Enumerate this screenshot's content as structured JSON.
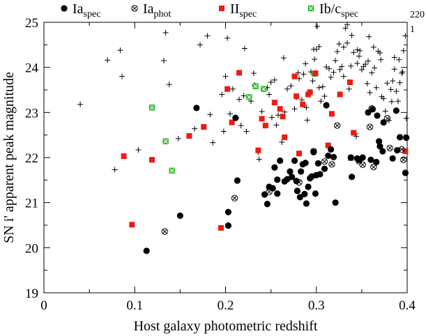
{
  "chart_data": {
    "type": "scatter",
    "xlabel": "Host galaxy photometric redshift",
    "ylabel": "SN i' apparent peak magnitude",
    "xlim": [
      0,
      0.4
    ],
    "ylim": [
      19,
      25
    ],
    "xticks": [
      "0",
      "0.1",
      "0.2",
      "0.3",
      "0.4"
    ],
    "yticks": [
      "19",
      "20",
      "21",
      "22",
      "23",
      "24",
      "25"
    ],
    "legend_placement": "top",
    "corner_labels": [
      "220",
      "1"
    ],
    "series": [
      {
        "name": "Ia",
        "subscript": "spec",
        "marker": "filled-circle",
        "color": "#000000",
        "points": [
          [
            0.113,
            19.93
          ],
          [
            0.15,
            20.71
          ],
          [
            0.168,
            23.1
          ],
          [
            0.203,
            20.49
          ],
          [
            0.203,
            20.79
          ],
          [
            0.211,
            22.88
          ],
          [
            0.213,
            21.49
          ],
          [
            0.243,
            21.18
          ],
          [
            0.246,
            20.97
          ],
          [
            0.248,
            21.35
          ],
          [
            0.252,
            21.32
          ],
          [
            0.254,
            21.78
          ],
          [
            0.257,
            21.51
          ],
          [
            0.257,
            21.2
          ],
          [
            0.26,
            21.93
          ],
          [
            0.265,
            21.47
          ],
          [
            0.268,
            21.52
          ],
          [
            0.271,
            21.69
          ],
          [
            0.273,
            21.57
          ],
          [
            0.276,
            21.93
          ],
          [
            0.278,
            21.48
          ],
          [
            0.279,
            21.26
          ],
          [
            0.282,
            21.12
          ],
          [
            0.283,
            21.69
          ],
          [
            0.285,
            21.85
          ],
          [
            0.287,
            21.19
          ],
          [
            0.288,
            21.88
          ],
          [
            0.289,
            20.98
          ],
          [
            0.291,
            21.35
          ],
          [
            0.293,
            21.54
          ],
          [
            0.295,
            21.58
          ],
          [
            0.297,
            22.12
          ],
          [
            0.299,
            21.2
          ],
          [
            0.3,
            21.61
          ],
          [
            0.302,
            21.87
          ],
          [
            0.304,
            21.63
          ],
          [
            0.309,
            21.75
          ],
          [
            0.311,
            23.16
          ],
          [
            0.313,
            22.04
          ],
          [
            0.316,
            22.18
          ],
          [
            0.319,
            22.01
          ],
          [
            0.321,
            21.0
          ],
          [
            0.338,
            22.0
          ],
          [
            0.339,
            21.57
          ],
          [
            0.345,
            21.98
          ],
          [
            0.347,
            21.95
          ],
          [
            0.351,
            22.0
          ],
          [
            0.357,
            23.0
          ],
          [
            0.36,
            21.95
          ],
          [
            0.362,
            23.07
          ],
          [
            0.366,
            21.9
          ],
          [
            0.367,
            22.93
          ],
          [
            0.369,
            22.36
          ],
          [
            0.37,
            22.25
          ],
          [
            0.373,
            22.14
          ],
          [
            0.374,
            22.78
          ],
          [
            0.388,
            23.04
          ],
          [
            0.392,
            22.45
          ],
          [
            0.398,
            21.66
          ],
          [
            0.399,
            22.44
          ],
          [
            0.384,
            21.98
          ],
          [
            0.389,
            22.16
          ]
        ]
      },
      {
        "name": "Ia",
        "subscript": "phot",
        "marker": "circle-x",
        "color": "#000000",
        "points": [
          [
            0.133,
            20.36
          ],
          [
            0.21,
            21.1
          ],
          [
            0.248,
            21.24
          ],
          [
            0.281,
            21.45
          ],
          [
            0.297,
            22.14
          ],
          [
            0.309,
            21.91
          ],
          [
            0.317,
            21.85
          ],
          [
            0.323,
            22.71
          ],
          [
            0.347,
            21.92
          ],
          [
            0.351,
            21.84
          ],
          [
            0.359,
            22.68
          ],
          [
            0.361,
            23.09
          ],
          [
            0.363,
            21.79
          ],
          [
            0.378,
            22.87
          ],
          [
            0.381,
            22.21
          ],
          [
            0.394,
            22.18
          ],
          [
            0.396,
            21.95
          ]
        ]
      },
      {
        "name": "II",
        "subscript": "spec",
        "marker": "filled-square",
        "color": "#ee1a14",
        "points": [
          [
            0.088,
            22.03
          ],
          [
            0.097,
            20.51
          ],
          [
            0.119,
            21.95
          ],
          [
            0.16,
            22.48
          ],
          [
            0.176,
            22.68
          ],
          [
            0.195,
            20.44
          ],
          [
            0.202,
            23.52
          ],
          [
            0.207,
            22.78
          ],
          [
            0.215,
            23.88
          ],
          [
            0.236,
            22.16
          ],
          [
            0.24,
            22.86
          ],
          [
            0.244,
            22.71
          ],
          [
            0.254,
            23.22
          ],
          [
            0.26,
            23.08
          ],
          [
            0.263,
            22.91
          ],
          [
            0.265,
            22.45
          ],
          [
            0.276,
            23.8
          ],
          [
            0.278,
            23.36
          ],
          [
            0.281,
            22.09
          ],
          [
            0.285,
            23.18
          ],
          [
            0.291,
            23.4
          ],
          [
            0.293,
            23.45
          ],
          [
            0.299,
            23.87
          ],
          [
            0.313,
            22.27
          ],
          [
            0.317,
            22.97
          ],
          [
            0.326,
            23.4
          ],
          [
            0.337,
            23.67
          ],
          [
            0.341,
            22.55
          ],
          [
            0.398,
            22.14
          ]
        ]
      },
      {
        "name": "Ib/c",
        "subscript": "spec",
        "marker": "square-x",
        "color": "#22cc22",
        "points": [
          [
            0.119,
            23.11
          ],
          [
            0.134,
            22.36
          ],
          [
            0.141,
            21.71
          ],
          [
            0.226,
            23.34
          ],
          [
            0.233,
            23.58
          ],
          [
            0.242,
            23.52
          ],
          [
            0.298,
            23.86
          ],
          [
            0.338,
            21.99
          ]
        ]
      },
      {
        "name": "",
        "marker": "plus",
        "color": "#000000",
        "points": [
          [
            0.04,
            23.18
          ],
          [
            0.07,
            24.16
          ],
          [
            0.078,
            21.73
          ],
          [
            0.084,
            24.38
          ],
          [
            0.086,
            23.8
          ],
          [
            0.104,
            22.17
          ],
          [
            0.132,
            24.15
          ],
          [
            0.134,
            24.77
          ],
          [
            0.138,
            23.62
          ],
          [
            0.148,
            22.42
          ],
          [
            0.166,
            22.64
          ],
          [
            0.172,
            24.5
          ],
          [
            0.18,
            24.7
          ],
          [
            0.183,
            22.95
          ],
          [
            0.186,
            22.33
          ],
          [
            0.196,
            23.4
          ],
          [
            0.198,
            22.58
          ],
          [
            0.2,
            23.8
          ],
          [
            0.202,
            24.65
          ],
          [
            0.205,
            22.97
          ],
          [
            0.208,
            23.52
          ],
          [
            0.212,
            22.88
          ],
          [
            0.215,
            23.29
          ],
          [
            0.217,
            22.71
          ],
          [
            0.22,
            23.37
          ],
          [
            0.223,
            22.58
          ],
          [
            0.228,
            23.25
          ],
          [
            0.232,
            23.61
          ],
          [
            0.236,
            22.12
          ],
          [
            0.237,
            21.96
          ],
          [
            0.24,
            23.02
          ],
          [
            0.246,
            23.55
          ],
          [
            0.248,
            23.4
          ],
          [
            0.251,
            22.89
          ],
          [
            0.254,
            23.72
          ],
          [
            0.256,
            22.72
          ],
          [
            0.258,
            22.94
          ],
          [
            0.262,
            22.34
          ],
          [
            0.265,
            23.01
          ],
          [
            0.268,
            23.52
          ],
          [
            0.272,
            23.59
          ],
          [
            0.276,
            23.08
          ],
          [
            0.278,
            23.33
          ],
          [
            0.281,
            23.75
          ],
          [
            0.284,
            23.28
          ],
          [
            0.286,
            23.85
          ],
          [
            0.289,
            23.11
          ],
          [
            0.29,
            22.83
          ],
          [
            0.292,
            23.42
          ],
          [
            0.294,
            23.9
          ],
          [
            0.296,
            23.7
          ],
          [
            0.297,
            24.4
          ],
          [
            0.298,
            24.18
          ],
          [
            0.3,
            24.4
          ],
          [
            0.301,
            24.91
          ],
          [
            0.303,
            23.55
          ],
          [
            0.305,
            23.25
          ],
          [
            0.307,
            23.57
          ],
          [
            0.309,
            23.36
          ],
          [
            0.311,
            24.01
          ],
          [
            0.314,
            23.97
          ],
          [
            0.316,
            23.78
          ],
          [
            0.319,
            23.89
          ],
          [
            0.321,
            24.15
          ],
          [
            0.323,
            24.35
          ],
          [
            0.325,
            24.52
          ],
          [
            0.326,
            23.95
          ],
          [
            0.328,
            24.02
          ],
          [
            0.33,
            24.45
          ],
          [
            0.332,
            24.87
          ],
          [
            0.334,
            24.54
          ],
          [
            0.336,
            23.52
          ],
          [
            0.338,
            24.03
          ],
          [
            0.339,
            24.71
          ],
          [
            0.341,
            24.33
          ],
          [
            0.343,
            22.53
          ],
          [
            0.344,
            22.47
          ],
          [
            0.345,
            24.39
          ],
          [
            0.347,
            24.25
          ],
          [
            0.348,
            24.37
          ],
          [
            0.35,
            23.95
          ],
          [
            0.352,
            24.02
          ],
          [
            0.354,
            24.07
          ],
          [
            0.356,
            23.64
          ],
          [
            0.357,
            24.14
          ],
          [
            0.359,
            23.44
          ],
          [
            0.361,
            23.88
          ],
          [
            0.363,
            24.45
          ],
          [
            0.364,
            23.99
          ],
          [
            0.366,
            23.55
          ],
          [
            0.368,
            24.36
          ],
          [
            0.37,
            24.32
          ],
          [
            0.372,
            23.35
          ],
          [
            0.374,
            23.31
          ],
          [
            0.376,
            23.03
          ],
          [
            0.378,
            23.65
          ],
          [
            0.38,
            22.82
          ],
          [
            0.382,
            23.51
          ],
          [
            0.384,
            23.7
          ],
          [
            0.386,
            23.96
          ],
          [
            0.388,
            23.47
          ],
          [
            0.39,
            23.25
          ],
          [
            0.392,
            23.66
          ],
          [
            0.394,
            23.87
          ],
          [
            0.396,
            24.37
          ],
          [
            0.398,
            24.7
          ],
          [
            0.399,
            22.87
          ],
          [
            0.395,
            23.9
          ],
          [
            0.391,
            24.17
          ],
          [
            0.386,
            24.22
          ],
          [
            0.383,
            23.24
          ],
          [
            0.371,
            24.17
          ],
          [
            0.358,
            24.68
          ],
          [
            0.345,
            24.09
          ],
          [
            0.334,
            24.95
          ],
          [
            0.33,
            23.8
          ],
          [
            0.303,
            24.46
          ],
          [
            0.288,
            24.08
          ],
          [
            0.28,
            23.88
          ],
          [
            0.264,
            24.21
          ],
          [
            0.25,
            23.67
          ],
          [
            0.231,
            23.87
          ],
          [
            0.221,
            24.42
          ]
        ]
      }
    ]
  }
}
